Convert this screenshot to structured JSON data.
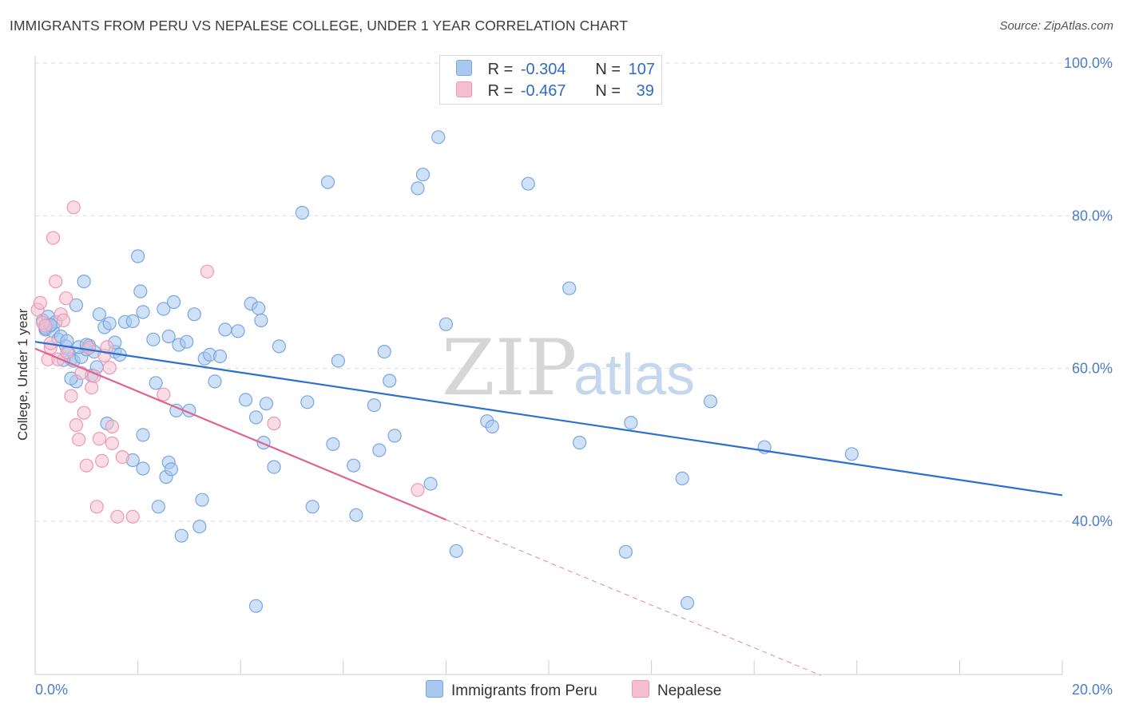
{
  "title": "IMMIGRANTS FROM PERU VS NEPALESE COLLEGE, UNDER 1 YEAR CORRELATION CHART",
  "source": "Source: ZipAtlas.com",
  "watermark": {
    "zip": "ZIP",
    "atlas": "atlas"
  },
  "legend": {
    "r_label": "R =",
    "n_label": "N =",
    "peru": {
      "r": "-0.304",
      "n": "107"
    },
    "nepal": {
      "r": "-0.467",
      "n": "39"
    }
  },
  "chart_data": {
    "type": "scatter",
    "ylabel": "College, Under 1 year",
    "x_ticks": [
      "0.0%",
      "20.0%"
    ],
    "y_ticks": [
      "100.0%",
      "80.0%",
      "60.0%",
      "40.0%"
    ],
    "xlim": [
      0,
      20
    ],
    "ylim": [
      20,
      103
    ],
    "series": [
      {
        "name": "Immigrants from Peru",
        "color": "#a8c8f0",
        "stroke": "#7aa6de",
        "line_color": "#2b6fd1",
        "trend": {
          "x": [
            0,
            20
          ],
          "y": [
            63.5,
            43.4
          ]
        },
        "points": [
          [
            0.15,
            66.3
          ],
          [
            0.2,
            65.1
          ],
          [
            0.25,
            66.8
          ],
          [
            0.3,
            65.6
          ],
          [
            0.35,
            64.9
          ],
          [
            0.4,
            66.1
          ],
          [
            0.45,
            63.8
          ],
          [
            0.5,
            64.2
          ],
          [
            0.6,
            62.9
          ],
          [
            0.65,
            62.1
          ],
          [
            0.7,
            61.2
          ],
          [
            0.75,
            61.0
          ],
          [
            0.8,
            58.3
          ],
          [
            0.9,
            61.5
          ],
          [
            1.0,
            62.5
          ],
          [
            1.05,
            63.0
          ],
          [
            1.1,
            59.1
          ],
          [
            1.15,
            62.2
          ],
          [
            1.2,
            60.2
          ],
          [
            0.2,
            65.3
          ],
          [
            0.55,
            61.1
          ],
          [
            0.62,
            63.6
          ],
          [
            0.8,
            68.3
          ],
          [
            0.85,
            62.8
          ],
          [
            1.0,
            63.1
          ],
          [
            1.25,
            67.1
          ],
          [
            1.35,
            65.4
          ],
          [
            1.45,
            65.9
          ],
          [
            1.55,
            62.2
          ],
          [
            1.65,
            61.8
          ],
          [
            1.75,
            66.1
          ],
          [
            1.9,
            66.2
          ],
          [
            2.0,
            74.7
          ],
          [
            2.05,
            70.1
          ],
          [
            2.1,
            67.4
          ],
          [
            2.3,
            63.8
          ],
          [
            2.35,
            58.1
          ],
          [
            2.5,
            67.8
          ],
          [
            2.6,
            64.2
          ],
          [
            2.7,
            68.7
          ],
          [
            2.8,
            63.1
          ],
          [
            2.95,
            63.5
          ],
          [
            3.1,
            67.1
          ],
          [
            3.3,
            61.3
          ],
          [
            3.4,
            61.8
          ],
          [
            3.5,
            58.3
          ],
          [
            3.7,
            65.1
          ],
          [
            3.95,
            64.9
          ],
          [
            4.2,
            68.5
          ],
          [
            4.35,
            67.9
          ],
          [
            4.4,
            66.3
          ],
          [
            4.1,
            55.9
          ],
          [
            4.3,
            53.6
          ],
          [
            4.45,
            50.3
          ],
          [
            4.5,
            55.4
          ],
          [
            4.65,
            47.1
          ],
          [
            5.3,
            55.6
          ],
          [
            5.4,
            41.9
          ],
          [
            5.8,
            50.1
          ],
          [
            6.2,
            47.3
          ],
          [
            6.25,
            40.8
          ],
          [
            6.6,
            55.2
          ],
          [
            6.7,
            49.3
          ],
          [
            6.9,
            58.4
          ],
          [
            7.0,
            51.2
          ],
          [
            7.45,
            83.6
          ],
          [
            7.55,
            85.4
          ],
          [
            7.7,
            44.9
          ],
          [
            7.85,
            90.3
          ],
          [
            8.0,
            65.8
          ],
          [
            8.2,
            36.1
          ],
          [
            8.8,
            53.1
          ],
          [
            8.9,
            52.4
          ],
          [
            9.6,
            84.2
          ],
          [
            10.4,
            70.5
          ],
          [
            10.6,
            50.3
          ],
          [
            11.5,
            36.0
          ],
          [
            11.6,
            52.9
          ],
          [
            12.6,
            45.6
          ],
          [
            12.7,
            29.3
          ],
          [
            13.15,
            55.7
          ],
          [
            14.2,
            49.7
          ],
          [
            15.9,
            48.8
          ],
          [
            5.2,
            80.4
          ],
          [
            5.7,
            84.4
          ],
          [
            4.3,
            28.9
          ],
          [
            3.2,
            39.3
          ],
          [
            2.85,
            38.1
          ],
          [
            3.25,
            42.8
          ],
          [
            1.4,
            52.8
          ],
          [
            2.1,
            51.3
          ],
          [
            2.6,
            47.7
          ],
          [
            1.9,
            48.0
          ],
          [
            2.1,
            46.9
          ],
          [
            2.55,
            45.8
          ],
          [
            2.65,
            46.8
          ],
          [
            2.4,
            41.9
          ],
          [
            5.9,
            61.0
          ],
          [
            6.8,
            62.2
          ],
          [
            4.75,
            62.9
          ],
          [
            0.95,
            71.4
          ],
          [
            0.3,
            65.7
          ],
          [
            0.7,
            58.7
          ],
          [
            1.55,
            63.4
          ],
          [
            3.6,
            61.6
          ],
          [
            2.75,
            54.5
          ],
          [
            3.0,
            54.5
          ]
        ]
      },
      {
        "name": "Nepalese",
        "color": "#f6bfd0",
        "stroke": "#ef97b2",
        "line_color": "#e0648f",
        "trend": {
          "x": [
            0,
            8.0
          ],
          "y": [
            62.6,
            40.2
          ]
        },
        "trend_dashed": {
          "x": [
            8.0,
            15.3
          ],
          "y": [
            40.2,
            19.8
          ]
        },
        "points": [
          [
            0.05,
            67.7
          ],
          [
            0.1,
            68.6
          ],
          [
            0.15,
            66.0
          ],
          [
            0.2,
            65.6
          ],
          [
            0.25,
            61.2
          ],
          [
            0.3,
            62.7
          ],
          [
            0.35,
            77.1
          ],
          [
            0.4,
            71.4
          ],
          [
            0.45,
            61.2
          ],
          [
            0.5,
            67.1
          ],
          [
            0.55,
            66.3
          ],
          [
            0.6,
            69.2
          ],
          [
            0.62,
            62.1
          ],
          [
            0.7,
            56.4
          ],
          [
            0.75,
            81.1
          ],
          [
            0.8,
            52.6
          ],
          [
            0.85,
            50.7
          ],
          [
            0.9,
            59.4
          ],
          [
            0.95,
            54.2
          ],
          [
            1.0,
            47.3
          ],
          [
            1.05,
            62.7
          ],
          [
            1.1,
            57.5
          ],
          [
            1.15,
            59.0
          ],
          [
            1.2,
            41.9
          ],
          [
            1.25,
            50.8
          ],
          [
            1.3,
            47.9
          ],
          [
            1.35,
            61.7
          ],
          [
            1.4,
            62.8
          ],
          [
            1.45,
            60.1
          ],
          [
            1.5,
            52.4
          ],
          [
            1.6,
            40.6
          ],
          [
            1.7,
            48.4
          ],
          [
            1.9,
            40.6
          ],
          [
            2.5,
            56.6
          ],
          [
            3.35,
            72.7
          ],
          [
            4.65,
            52.8
          ],
          [
            7.45,
            44.1
          ],
          [
            0.3,
            63.3
          ],
          [
            1.5,
            50.2
          ]
        ]
      }
    ],
    "grid": true,
    "legend_position": "top-center"
  }
}
